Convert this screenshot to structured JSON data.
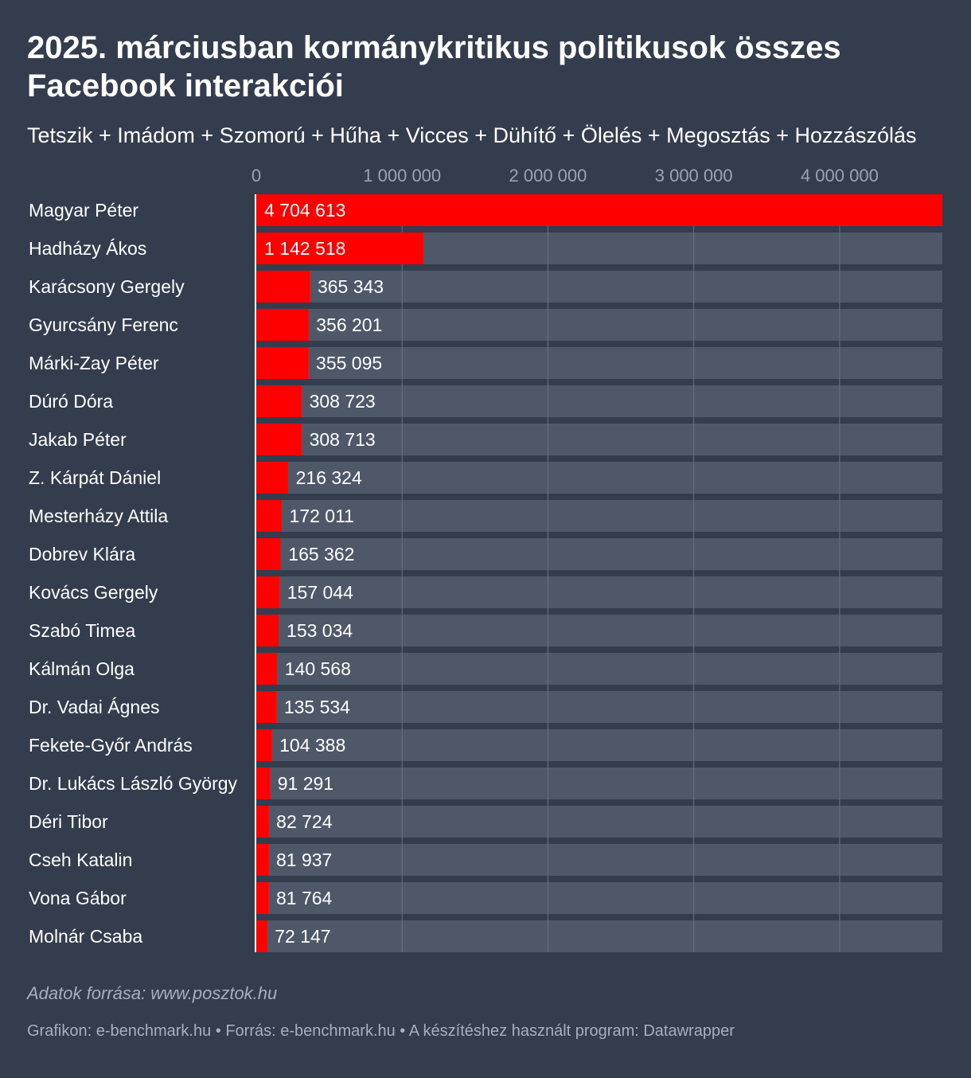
{
  "header": {
    "title": "2025. márciusban kormánykritikus politikusok összes Facebook interakciói",
    "subtitle": "Tetszik + Imádom + Szomorú + Hűha + Vicces + Dühítő + Ölelés + Megosztás + Hozzászólás"
  },
  "footer": {
    "source": "Adatok forrása: www.posztok.hu",
    "credits": "Grafikon: e-benchmark.hu • Forrás: e-benchmark.hu • A készítéshez használt program: Datawrapper"
  },
  "colors": {
    "background": "#333d4d",
    "bar": "#ff0000",
    "track": "#4e5868",
    "gridline": "#6a7382",
    "axis_tick": "#9aa3b0"
  },
  "chart_data": {
    "type": "bar",
    "orientation": "horizontal",
    "title": "2025. márciusban kormánykritikus politikusok összes Facebook interakciói",
    "subtitle": "Tetszik + Imádom + Szomorú + Hűha + Vicces + Dühítő + Ölelés + Megosztás + Hozzászólás",
    "xlim": [
      0,
      4704613
    ],
    "ticks": [
      {
        "value": 0,
        "label": "0"
      },
      {
        "value": 1000000,
        "label": "1 000 000"
      },
      {
        "value": 2000000,
        "label": "2 000 000"
      },
      {
        "value": 3000000,
        "label": "3 000 000"
      },
      {
        "value": 4000000,
        "label": "4 000 000"
      }
    ],
    "grid": true,
    "categories": [
      "Magyar Péter",
      "Hadházy Ákos",
      "Karácsony Gergely",
      "Gyurcsány Ferenc",
      "Márki-Zay Péter",
      "Dúró Dóra",
      "Jakab Péter",
      "Z. Kárpát Dániel",
      "Mesterházy Attila",
      "Dobrev Klára",
      "Kovács Gergely",
      "Szabó Timea",
      "Kálmán Olga",
      "Dr. Vadai Ágnes",
      "Fekete-Győr András",
      "Dr. Lukács László György",
      "Déri Tibor",
      "Cseh Katalin",
      "Vona Gábor",
      "Molnár Csaba"
    ],
    "values": [
      4704613,
      1142518,
      365343,
      356201,
      355095,
      308723,
      308713,
      216324,
      172011,
      165362,
      157044,
      153034,
      140568,
      135534,
      104388,
      91291,
      82724,
      81937,
      81764,
      72147
    ],
    "value_labels": [
      "4 704 613",
      "1 142 518",
      "365 343",
      "356 201",
      "355 095",
      "308 723",
      "308 713",
      "216 324",
      "172 011",
      "165 362",
      "157 044",
      "153 034",
      "140 568",
      "135 534",
      "104 388",
      "91 291",
      "82 724",
      "81 937",
      "81 764",
      "72 147"
    ]
  }
}
